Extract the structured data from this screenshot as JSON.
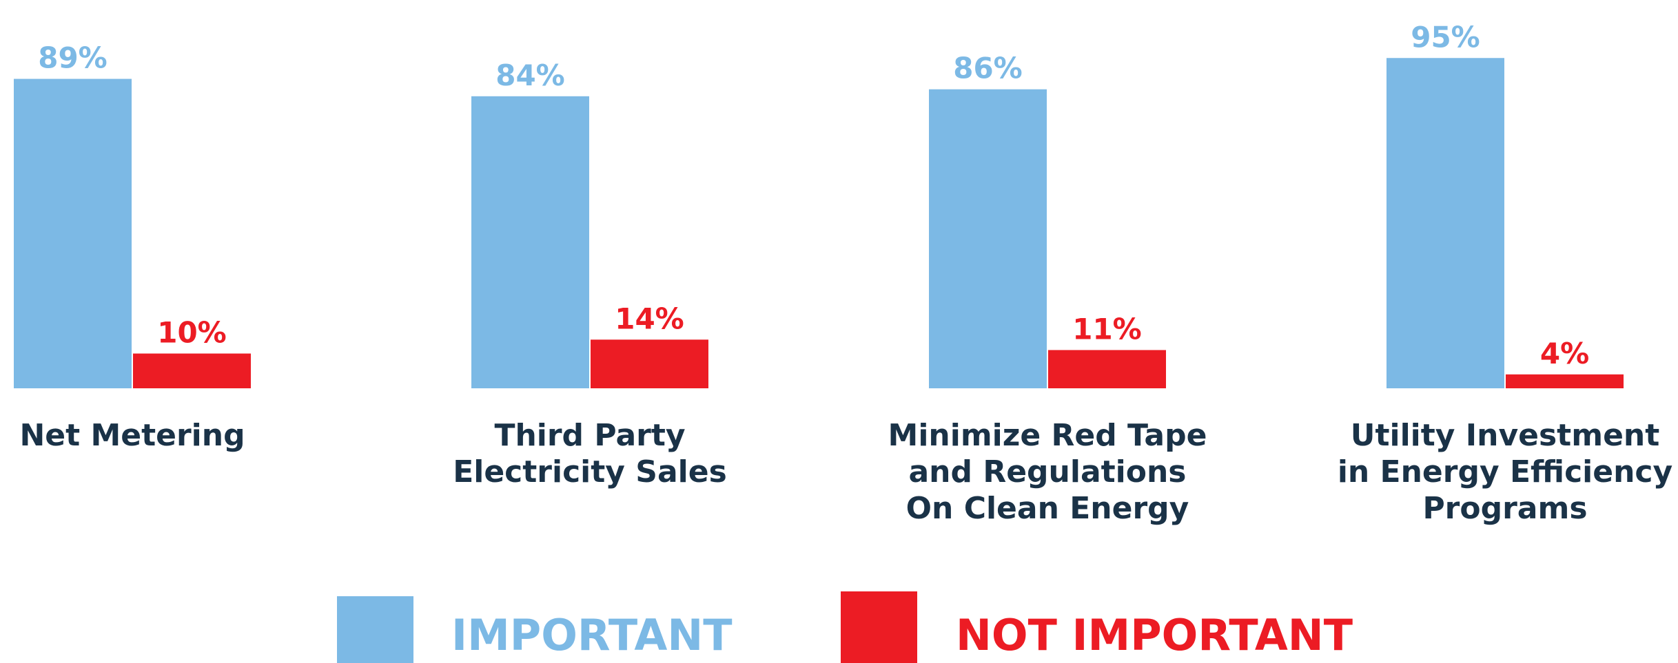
{
  "chart_data": {
    "type": "bar",
    "categories": [
      "Net Metering",
      "Third Party\nElectricity Sales",
      "Minimize Red Tape\nand Regulations\nOn Clean Energy",
      "Utility Investment\nin Energy Efficiency\nPrograms"
    ],
    "series": [
      {
        "name": "IMPORTANT",
        "color": "#7cb9e5",
        "values": [
          89,
          84,
          86,
          95
        ],
        "value_labels": [
          "89%",
          "84%",
          "86%",
          "95%"
        ]
      },
      {
        "name": "NOT IMPORTANT",
        "color": "#ec1c24",
        "values": [
          10,
          14,
          11,
          4
        ],
        "value_labels": [
          "10%",
          "14%",
          "11%",
          "4%"
        ]
      }
    ],
    "ylim": [
      0,
      100
    ],
    "grid": false
  }
}
